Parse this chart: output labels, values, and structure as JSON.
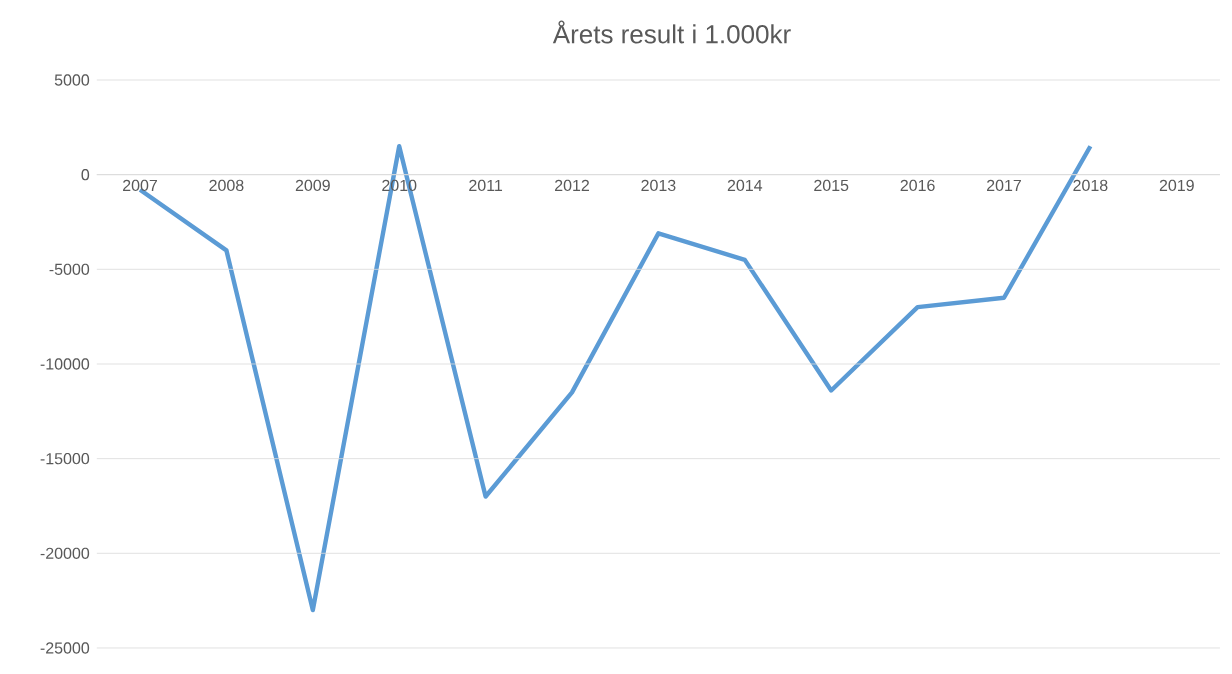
{
  "chart_data": {
    "type": "line",
    "title": "Årets result i 1.000kr",
    "categories": [
      "2007",
      "2008",
      "2009",
      "2010",
      "2011",
      "2012",
      "2013",
      "2014",
      "2015",
      "2016",
      "2017",
      "2018",
      "2019"
    ],
    "values": [
      -800,
      -4000,
      -23000,
      1500,
      -17000,
      -11500,
      -3100,
      -4500,
      -11400,
      -7000,
      -6500,
      1500,
      null
    ],
    "color": "#5b9bd5",
    "ylim": [
      -25000,
      5000
    ],
    "yticks": [
      -25000,
      -20000,
      -15000,
      -10000,
      -5000,
      0,
      5000
    ],
    "grid": "y"
  }
}
